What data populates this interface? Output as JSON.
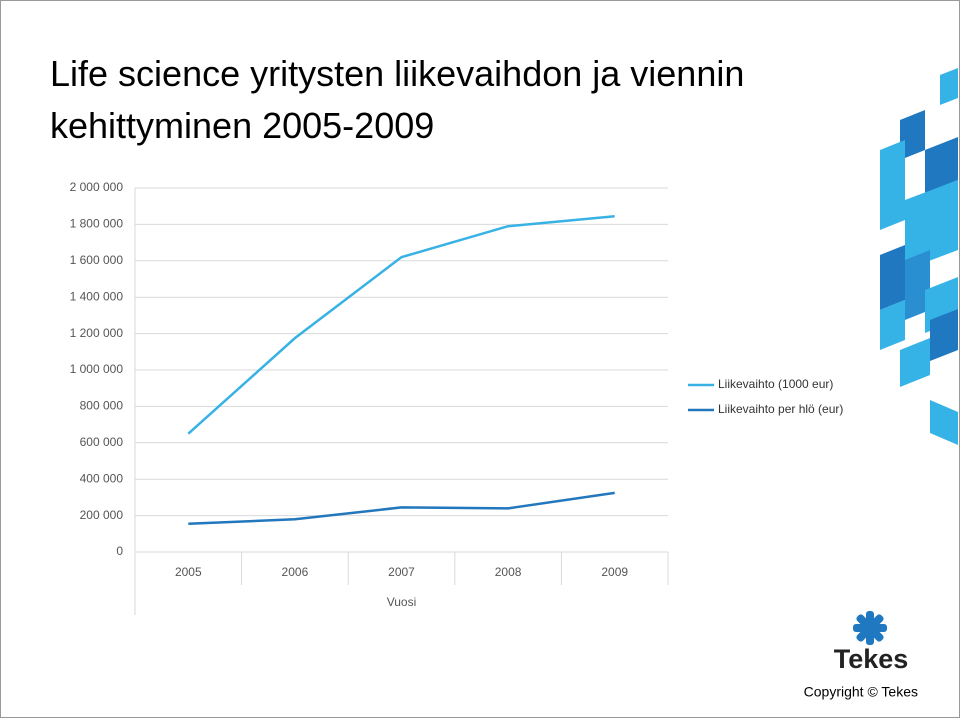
{
  "chart_data": {
    "type": "line",
    "title": "Life science yritysten liikevaihdon ja viennin kehittyminen 2005-2009",
    "xlabel": "Vuosi",
    "categories": [
      "2005",
      "2006",
      "2007",
      "2008",
      "2009"
    ],
    "series": [
      {
        "name": "Liikevaihto (1000 eur)",
        "color": "#38b2e4",
        "values": [
          650000,
          1175000,
          1620000,
          1790000,
          1845000
        ]
      },
      {
        "name": "Liikevaihto per hlö (eur)",
        "color": "#2277bd",
        "values": [
          155000,
          180000,
          245000,
          240000,
          325000
        ]
      }
    ],
    "ylim": [
      0,
      2000000
    ],
    "yticks": [
      0,
      {
        "value": 200000,
        "label": "200 000"
      },
      {
        "value": 400000,
        "label": "400 000"
      },
      {
        "value": 600000,
        "label": "600 000"
      },
      {
        "value": 800000,
        "label": "800 000"
      },
      {
        "value": 1000000,
        "label": "1 000 000"
      },
      {
        "value": 1200000,
        "label": "1 200 000"
      },
      {
        "value": 1400000,
        "label": "1 400 000"
      },
      {
        "value": 1600000,
        "label": "1 600 000"
      },
      {
        "value": 1800000,
        "label": "1 800 000"
      },
      {
        "value": 2000000,
        "label": "2 000 000"
      }
    ],
    "grid": true,
    "legend": "right"
  },
  "logo": "Tekes",
  "footer": "Copyright © Tekes"
}
